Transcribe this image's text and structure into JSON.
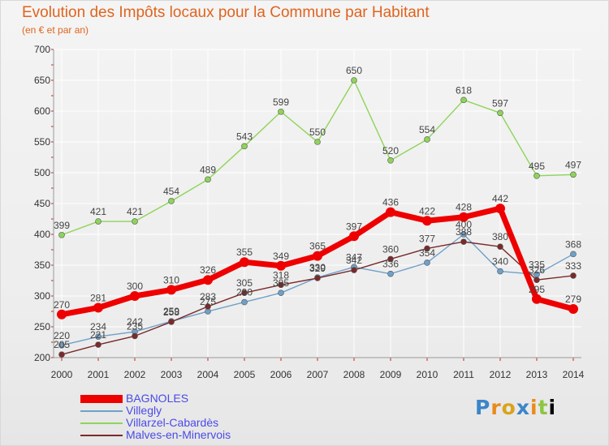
{
  "header": {
    "title": "Evolution des Impôts locaux pour la Commune par Habitant",
    "subtitle": "(en € et par an)"
  },
  "logo": {
    "letters": [
      "P",
      "r",
      "o",
      "x",
      "i",
      "t",
      "i"
    ]
  },
  "colors": {
    "title": "#e0641e",
    "legend_text": "#4a4ae8",
    "grid": "#ffffff",
    "axis_tick": "#cc2222"
  },
  "chart_data": {
    "type": "line",
    "title": "Evolution des Impôts locaux pour la Commune par Habitant",
    "subtitle": "(en € et par an)",
    "xlabel": "",
    "ylabel": "",
    "ylim": [
      200,
      700
    ],
    "yticks": [
      200,
      250,
      300,
      350,
      400,
      450,
      500,
      550,
      600,
      650,
      700
    ],
    "grid": true,
    "legend_position": "bottom-left",
    "x": [
      "2000",
      "2001",
      "2002",
      "2003",
      "2004",
      "2005",
      "2006",
      "2007",
      "2008",
      "2009",
      "2010",
      "2011",
      "2012",
      "2013",
      "2014"
    ],
    "series": [
      {
        "name": "BAGNOLES",
        "color": "#ee0000",
        "width": 7,
        "marker": 6,
        "values": [
          270,
          281,
          300,
          310,
          326,
          355,
          349,
          365,
          397,
          436,
          422,
          428,
          442,
          295,
          279
        ],
        "labels": [
          "270",
          "281",
          "300",
          "310",
          "326",
          "355",
          "349",
          "365",
          "397",
          "436",
          "422",
          "428",
          "442",
          "295",
          "279"
        ]
      },
      {
        "name": "Villegly",
        "color": "#6fa0c8",
        "width": 1.4,
        "marker": 3.5,
        "values": [
          220,
          234,
          242,
          259,
          275,
          290,
          305,
          330,
          347,
          336,
          354,
          400,
          340,
          335,
          368
        ],
        "labels": [
          "220",
          "234",
          "242",
          "259",
          "275",
          "290",
          "305",
          "330",
          "347",
          "336",
          "354",
          "400",
          "340",
          "335",
          "368"
        ]
      },
      {
        "name": "Villarzel-Cabardès",
        "color": "#8ed45a",
        "width": 1.4,
        "marker": 3.5,
        "values": [
          399,
          421,
          421,
          454,
          489,
          543,
          599,
          550,
          650,
          520,
          554,
          618,
          597,
          495,
          497
        ],
        "labels": [
          "399",
          "421",
          "421",
          "454",
          "489",
          "543",
          "599",
          "550",
          "650",
          "520",
          "554",
          "618",
          "597",
          "495",
          "497"
        ]
      },
      {
        "name": "Malves-en-Minervois",
        "color": "#7a2a2a",
        "width": 1.4,
        "marker": 3.5,
        "values": [
          205,
          221,
          235,
          258,
          283,
          305,
          318,
          329,
          342,
          360,
          377,
          388,
          380,
          326,
          333
        ],
        "labels": [
          "205",
          "221",
          "235",
          "258",
          "283",
          "305",
          "318",
          "329",
          "342",
          "360",
          "377",
          "388",
          "380",
          "326",
          "333"
        ]
      }
    ]
  }
}
